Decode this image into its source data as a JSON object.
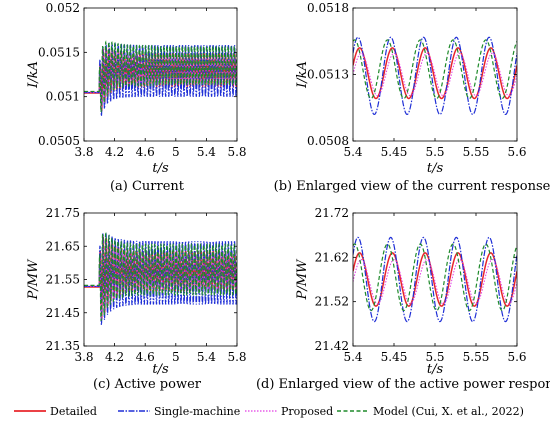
{
  "colors": {
    "detailed": "#e8262b",
    "single_machine": "#1f2fd6",
    "proposed": "#e23ce3",
    "model": "#1e8a2a"
  },
  "legend": {
    "detailed": "Detailed",
    "single_machine": "Single-machine",
    "proposed": "Proposed",
    "model": "Model (Cui, X. et al., 2022)"
  },
  "chart_data": [
    {
      "type": "line",
      "caption": "(a) Current",
      "xlabel": "t/s",
      "ylabel": "I/kA",
      "xlim": [
        3.8,
        5.8
      ],
      "ylim": [
        0.0505,
        0.052
      ],
      "xticks": [
        "3.8",
        "4.2",
        "4.6",
        "5",
        "5.4",
        "5.8"
      ],
      "yticks": [
        "0.0505",
        "0.051",
        "0.0515",
        "0.052"
      ],
      "pre_disturbance_value": 0.05105,
      "disturbance_time": 4.0,
      "steady_state": {
        "detailed": {
          "mean": 0.0513,
          "amplitude": 0.00018
        },
        "single_machine": {
          "mean": 0.05129,
          "amplitude": 0.00029
        },
        "proposed": {
          "mean": 0.0513,
          "amplitude": 0.00016
        },
        "model": {
          "mean": 0.05135,
          "amplitude": 0.00022
        }
      },
      "peak_first_swing": 0.0517,
      "trough_first_swing": 0.05085
    },
    {
      "type": "line",
      "caption": "(b) Enlarged view of the current response",
      "xlabel": "t/s",
      "ylabel": "I/kA",
      "xlim": [
        5.4,
        5.6
      ],
      "ylim": [
        0.0508,
        0.0518
      ],
      "xticks": [
        "5.4",
        "5.45",
        "5.5",
        "5.55",
        "5.6"
      ],
      "yticks": [
        "0.0508",
        "0.0513",
        "0.0518"
      ],
      "period": 0.04,
      "series": [
        {
          "name": "Detailed",
          "mean": 0.05131,
          "amplitude": 0.00019,
          "phase_peak_at": 5.408
        },
        {
          "name": "Single-machine",
          "mean": 0.05129,
          "amplitude": 0.00029,
          "phase_peak_at": 5.406
        },
        {
          "name": "Proposed",
          "mean": 0.0513,
          "amplitude": 0.00016,
          "phase_peak_at": 5.41
        },
        {
          "name": "Model (Cui, X. et al., 2022)",
          "mean": 0.05134,
          "amplitude": 0.00022,
          "phase_peak_at": 5.402
        }
      ]
    },
    {
      "type": "line",
      "caption": "(c) Active power",
      "xlabel": "t/s",
      "ylabel": "P/MW",
      "xlim": [
        3.8,
        5.8
      ],
      "ylim": [
        21.35,
        21.75
      ],
      "xticks": [
        "3.8",
        "4.2",
        "4.6",
        "5",
        "5.4",
        "5.8"
      ],
      "yticks": [
        "21.35",
        "21.45",
        "21.55",
        "21.65",
        "21.75"
      ],
      "pre_disturbance_value": 21.53,
      "disturbance_time": 4.0,
      "steady_state": {
        "detailed": {
          "mean": 21.575,
          "amplitude": 0.06
        },
        "single_machine": {
          "mean": 21.57,
          "amplitude": 0.095
        },
        "proposed": {
          "mean": 21.57,
          "amplitude": 0.05
        },
        "model": {
          "mean": 21.58,
          "amplitude": 0.075
        }
      },
      "peak_first_swing": 21.72,
      "trough_first_swing": 21.4
    },
    {
      "type": "line",
      "caption": "(d) Enlarged view of the active power response",
      "xlabel": "t/s",
      "ylabel": "P/MW",
      "xlim": [
        5.4,
        5.6
      ],
      "ylim": [
        21.42,
        21.72
      ],
      "xticks": [
        "5.4",
        "5.45",
        "5.5",
        "5.55",
        "5.6"
      ],
      "yticks": [
        "21.42",
        "21.52",
        "21.62",
        "21.72"
      ],
      "period": 0.04,
      "series": [
        {
          "name": "Detailed",
          "mean": 21.57,
          "amplitude": 0.06,
          "phase_peak_at": 5.408
        },
        {
          "name": "Single-machine",
          "mean": 21.57,
          "amplitude": 0.095,
          "phase_peak_at": 5.406
        },
        {
          "name": "Proposed",
          "mean": 21.565,
          "amplitude": 0.05,
          "phase_peak_at": 5.41
        },
        {
          "name": "Model (Cui, X. et al., 2022)",
          "mean": 21.575,
          "amplitude": 0.075,
          "phase_peak_at": 5.402
        }
      ]
    }
  ]
}
